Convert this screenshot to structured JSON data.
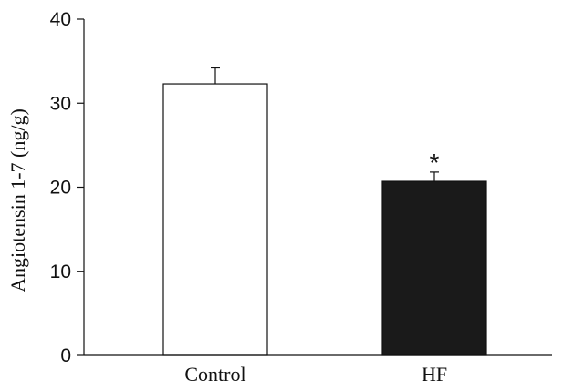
{
  "chart_data": {
    "type": "bar",
    "title": "",
    "xlabel": "",
    "ylabel": "Angiotensin 1-7 (ng/g)",
    "ylim": [
      0,
      40
    ],
    "yticks": [
      0,
      10,
      20,
      30,
      40
    ],
    "grid": false,
    "categories": [
      "Control",
      "HF"
    ],
    "values": [
      32.3,
      20.7
    ],
    "errors": [
      1.9,
      1.1
    ],
    "fill_colors": [
      "#ffffff",
      "#1a1a1a"
    ],
    "annotations": [
      {
        "category": "HF",
        "text": "*"
      }
    ]
  }
}
